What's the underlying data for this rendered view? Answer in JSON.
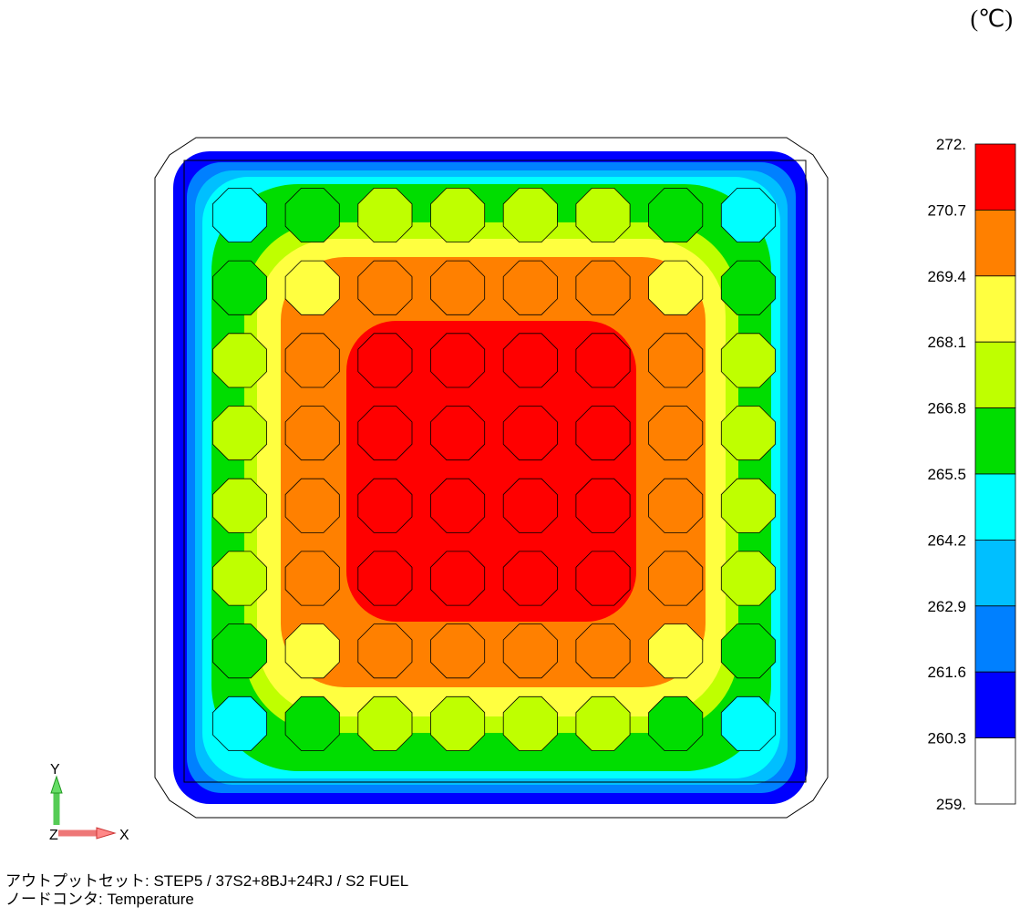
{
  "unit_label": "(℃)",
  "footer": {
    "line1": "アウトプットセット: STEP5 / 37S2+8BJ+24RJ / S2 FUEL",
    "line2": "ノードコンタ: Temperature"
  },
  "axes_triad": {
    "y_label": "Y",
    "x_label": "X",
    "z_label": "Z"
  },
  "chart_data": {
    "type": "heatmap",
    "legend": {
      "ticks": [
        "272.",
        "270.7",
        "269.4",
        "268.1",
        "266.8",
        "265.5",
        "264.2",
        "262.9",
        "261.6",
        "260.3",
        "259."
      ],
      "band_colors": [
        "#ff0000",
        "#ff8000",
        "#ffff40",
        "#bfff00",
        "#00dd00",
        "#00ffff",
        "#00bfff",
        "#0080ff",
        "#0000ff",
        "#ffffff"
      ]
    },
    "grid": {
      "rows": 8,
      "cols": 8
    },
    "cell_levels": [
      [
        5,
        4,
        3,
        3,
        3,
        3,
        4,
        5
      ],
      [
        4,
        2,
        1,
        1,
        1,
        1,
        2,
        4
      ],
      [
        3,
        1,
        0,
        0,
        0,
        0,
        1,
        3
      ],
      [
        3,
        1,
        0,
        0,
        0,
        0,
        1,
        3
      ],
      [
        3,
        1,
        0,
        0,
        0,
        0,
        1,
        3
      ],
      [
        3,
        1,
        0,
        0,
        0,
        0,
        1,
        3
      ],
      [
        4,
        2,
        1,
        1,
        1,
        1,
        2,
        4
      ],
      [
        5,
        4,
        3,
        3,
        3,
        3,
        4,
        5
      ]
    ]
  }
}
